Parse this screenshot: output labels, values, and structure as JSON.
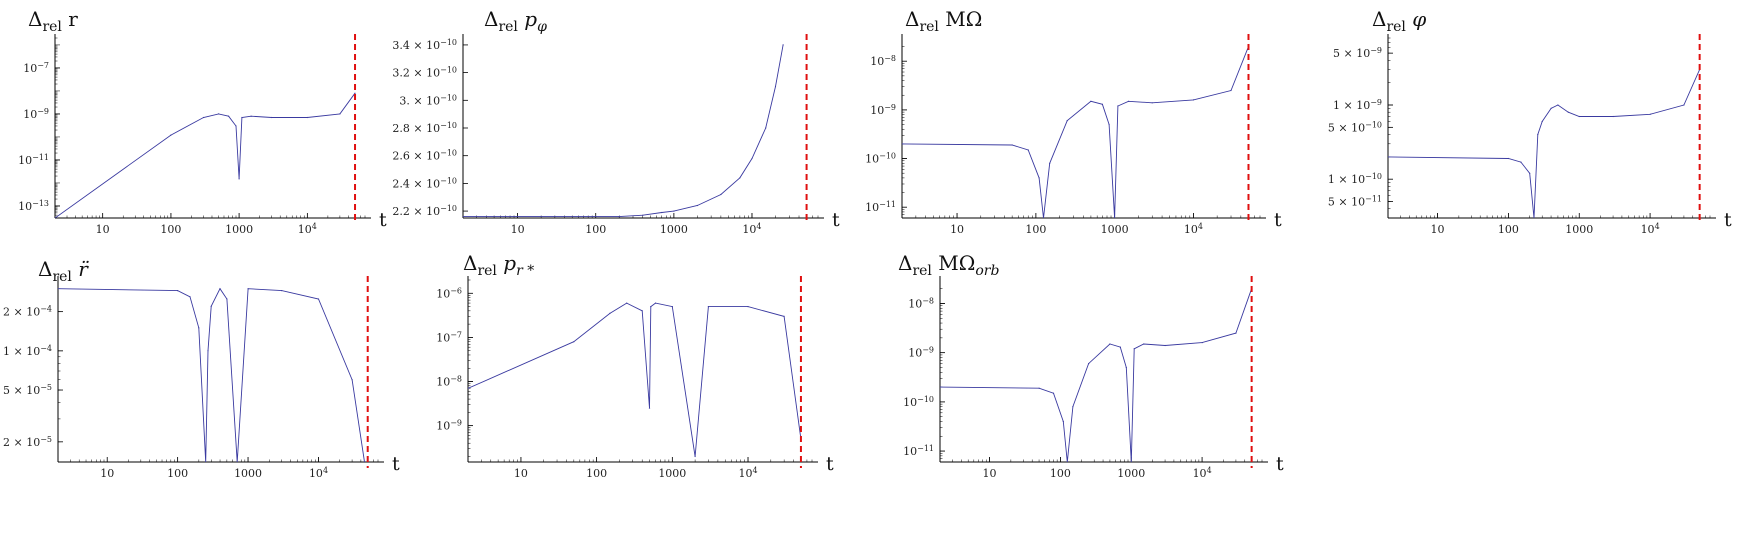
{
  "chart_data": [
    {
      "id": "p1",
      "type": "line",
      "title": {
        "symbol": "Δ",
        "sub": "rel",
        "var": "r"
      },
      "xlabel": "t",
      "xscale": "log",
      "yscale": "log",
      "xlim": [
        2,
        70000
      ],
      "ylim": [
        3e-14,
        2e-06
      ],
      "x_ticks": [
        {
          "v": 10,
          "label": "10"
        },
        {
          "v": 100,
          "label": "100"
        },
        {
          "v": 1000,
          "label": "1000"
        },
        {
          "v": 10000,
          "label": "10",
          "exp": "4"
        }
      ],
      "y_ticks": [
        {
          "v": 1e-13,
          "label": "10",
          "exp": "−13"
        },
        {
          "v": 1e-11,
          "label": "10",
          "exp": "−11"
        },
        {
          "v": 1e-09,
          "label": "10",
          "exp": "−9"
        },
        {
          "v": 1e-07,
          "label": "10",
          "exp": "−7"
        }
      ],
      "vline_x": 50000,
      "series": [
        {
          "x": [
            2,
            100,
            300,
            500,
            700,
            900,
            1000,
            1100,
            1500,
            3000,
            10000,
            30000,
            50000
          ],
          "y": [
            3e-14,
            1.2e-10,
            7e-10,
            1e-09,
            8e-10,
            3e-10,
            1.5e-12,
            7e-10,
            8e-10,
            7e-10,
            7e-10,
            1e-09,
            8e-09
          ]
        }
      ]
    },
    {
      "id": "p2",
      "type": "line",
      "title": {
        "symbol": "Δ",
        "sub": "rel",
        "var": "p",
        "var_sub": "φ"
      },
      "xlabel": "t",
      "xscale": "log",
      "yscale": "linear",
      "xlim": [
        2,
        70000
      ],
      "ylim": [
        2.15e-10,
        3.45e-10
      ],
      "x_ticks": [
        {
          "v": 10,
          "label": "10"
        },
        {
          "v": 100,
          "label": "100"
        },
        {
          "v": 1000,
          "label": "1000"
        },
        {
          "v": 10000,
          "label": "10",
          "exp": "4"
        }
      ],
      "y_ticks": [
        {
          "v": 2.2e-10,
          "label": "2.2 × 10",
          "exp": "−10"
        },
        {
          "v": 2.4e-10,
          "label": "2.4 × 10",
          "exp": "−10"
        },
        {
          "v": 2.6e-10,
          "label": "2.6 × 10",
          "exp": "−10"
        },
        {
          "v": 2.8e-10,
          "label": "2.8 × 10",
          "exp": "−10"
        },
        {
          "v": 3e-10,
          "label": "3. × 10",
          "exp": "−10"
        },
        {
          "v": 3.2e-10,
          "label": "3.2 × 10",
          "exp": "−10"
        },
        {
          "v": 3.4e-10,
          "label": "3.4 × 10",
          "exp": "−10"
        }
      ],
      "vline_x": 50000,
      "series": [
        {
          "x": [
            2,
            200,
            400,
            700,
            1000,
            2000,
            4000,
            7000,
            10000,
            15000,
            20000,
            25000
          ],
          "y": [
            2.16e-10,
            2.16e-10,
            2.17e-10,
            2.19e-10,
            2.2e-10,
            2.24e-10,
            2.32e-10,
            2.44e-10,
            2.58e-10,
            2.8e-10,
            3.1e-10,
            3.4e-10
          ]
        }
      ]
    },
    {
      "id": "p3",
      "type": "line",
      "title": {
        "symbol": "Δ",
        "sub": "rel",
        "var": "MΩ"
      },
      "xlabel": "t",
      "xscale": "log",
      "yscale": "log",
      "xlim": [
        2,
        70000
      ],
      "ylim": [
        6e-12,
        3e-08
      ],
      "x_ticks": [
        {
          "v": 10,
          "label": "10"
        },
        {
          "v": 100,
          "label": "100"
        },
        {
          "v": 1000,
          "label": "1000"
        },
        {
          "v": 10000,
          "label": "10",
          "exp": "4"
        }
      ],
      "y_ticks": [
        {
          "v": 1e-11,
          "label": "10",
          "exp": "−11"
        },
        {
          "v": 1e-10,
          "label": "10",
          "exp": "−10"
        },
        {
          "v": 1e-09,
          "label": "10",
          "exp": "−9"
        },
        {
          "v": 1e-08,
          "label": "10",
          "exp": "−8"
        }
      ],
      "vline_x": 50000,
      "series": [
        {
          "x": [
            2,
            50,
            80,
            110,
            125,
            150,
            250,
            500,
            700,
            850,
            1000,
            1100,
            1500,
            3000,
            10000,
            30000,
            50000
          ],
          "y": [
            2e-10,
            1.9e-10,
            1.5e-10,
            4e-11,
            6e-12,
            8e-11,
            6e-10,
            1.5e-09,
            1.3e-09,
            5e-10,
            6e-12,
            1.2e-09,
            1.5e-09,
            1.4e-09,
            1.6e-09,
            2.5e-09,
            2e-08
          ]
        }
      ]
    },
    {
      "id": "p4",
      "type": "line",
      "title": {
        "symbol": "Δ",
        "sub": "rel",
        "var": "φ"
      },
      "xlabel": "t",
      "xscale": "log",
      "yscale": "log",
      "xlim": [
        2,
        70000
      ],
      "ylim": [
        3e-11,
        8e-09
      ],
      "x_ticks": [
        {
          "v": 10,
          "label": "10"
        },
        {
          "v": 100,
          "label": "100"
        },
        {
          "v": 1000,
          "label": "1000"
        },
        {
          "v": 10000,
          "label": "10",
          "exp": "4"
        }
      ],
      "y_ticks": [
        {
          "v": 5e-11,
          "label": "5 × 10",
          "exp": "−11"
        },
        {
          "v": 1e-10,
          "label": "1 × 10",
          "exp": "−10"
        },
        {
          "v": 5e-10,
          "label": "5 × 10",
          "exp": "−10"
        },
        {
          "v": 1e-09,
          "label": "1 × 10",
          "exp": "−9"
        },
        {
          "v": 5e-09,
          "label": "5 × 10",
          "exp": "−9"
        }
      ],
      "vline_x": 50000,
      "series": [
        {
          "x": [
            2,
            100,
            150,
            200,
            230,
            260,
            300,
            400,
            500,
            700,
            1000,
            3000,
            10000,
            30000,
            50000
          ],
          "y": [
            2e-10,
            1.9e-10,
            1.7e-10,
            1.2e-10,
            3e-11,
            4e-10,
            6e-10,
            9e-10,
            1e-09,
            8e-10,
            7e-10,
            7e-10,
            7.5e-10,
            1e-09,
            3e-09
          ]
        }
      ]
    },
    {
      "id": "p5",
      "type": "line",
      "title": {
        "symbol": "Δ",
        "sub": "rel",
        "var": "r̈"
      },
      "xlabel": "t",
      "xscale": "log",
      "yscale": "log",
      "xlim": [
        2,
        70000
      ],
      "ylim": [
        1.4e-05,
        0.00035
      ],
      "x_ticks": [
        {
          "v": 10,
          "label": "10"
        },
        {
          "v": 100,
          "label": "100"
        },
        {
          "v": 1000,
          "label": "1000"
        },
        {
          "v": 10000,
          "label": "10",
          "exp": "4"
        }
      ],
      "y_ticks": [
        {
          "v": 2e-05,
          "label": "2 × 10",
          "exp": "−5"
        },
        {
          "v": 5e-05,
          "label": "5 × 10",
          "exp": "−5"
        },
        {
          "v": 0.0001,
          "label": "1 × 10",
          "exp": "−4"
        },
        {
          "v": 0.0002,
          "label": "2 × 10",
          "exp": "−4"
        }
      ],
      "vline_x": 50000,
      "series": [
        {
          "x": [
            2,
            100,
            150,
            200,
            250,
            270,
            300,
            400,
            500,
            700,
            1000,
            3000,
            10000,
            30000,
            45000
          ],
          "y": [
            0.0003,
            0.00029,
            0.00026,
            0.00015,
            1.4e-05,
            0.0001,
            0.00022,
            0.0003,
            0.00025,
            1.4e-05,
            0.0003,
            0.00029,
            0.00025,
            6e-05,
            1.4e-05
          ]
        }
      ]
    },
    {
      "id": "p6",
      "type": "line",
      "title": {
        "symbol": "Δ",
        "sub": "rel",
        "var": "p",
        "var_sub": "r *"
      },
      "xlabel": "t",
      "xscale": "log",
      "yscale": "log",
      "xlim": [
        2,
        70000
      ],
      "ylim": [
        1.5e-10,
        2e-06
      ],
      "x_ticks": [
        {
          "v": 10,
          "label": "10"
        },
        {
          "v": 100,
          "label": "100"
        },
        {
          "v": 1000,
          "label": "1000"
        },
        {
          "v": 10000,
          "label": "10",
          "exp": "4"
        }
      ],
      "y_ticks": [
        {
          "v": 1e-09,
          "label": "10",
          "exp": "−9"
        },
        {
          "v": 1e-08,
          "label": "10",
          "exp": "−8"
        },
        {
          "v": 1e-07,
          "label": "10",
          "exp": "−7"
        },
        {
          "v": 1e-06,
          "label": "10",
          "exp": "−6"
        }
      ],
      "vline_x": 50000,
      "series": [
        {
          "x": [
            2,
            50,
            150,
            250,
            400,
            500,
            520,
            600,
            1000,
            2000,
            3000,
            10000,
            30000,
            50000
          ],
          "y": [
            7e-09,
            8e-08,
            3.5e-07,
            6e-07,
            4e-07,
            2.5e-09,
            5e-07,
            6e-07,
            5e-07,
            2e-10,
            5e-07,
            5e-07,
            3e-07,
            5e-10
          ]
        }
      ]
    },
    {
      "id": "p7",
      "type": "line",
      "title": {
        "symbol": "Δ",
        "sub": "rel",
        "var": "MΩ",
        "var_sub": "orb"
      },
      "xlabel": "t",
      "xscale": "log",
      "yscale": "log",
      "xlim": [
        2,
        70000
      ],
      "ylim": [
        6e-12,
        3e-08
      ],
      "x_ticks": [
        {
          "v": 10,
          "label": "10"
        },
        {
          "v": 100,
          "label": "100"
        },
        {
          "v": 1000,
          "label": "1000"
        },
        {
          "v": 10000,
          "label": "10",
          "exp": "4"
        }
      ],
      "y_ticks": [
        {
          "v": 1e-11,
          "label": "10",
          "exp": "−11"
        },
        {
          "v": 1e-10,
          "label": "10",
          "exp": "−10"
        },
        {
          "v": 1e-09,
          "label": "10",
          "exp": "−9"
        },
        {
          "v": 1e-08,
          "label": "10",
          "exp": "−8"
        }
      ],
      "vline_x": 50000,
      "series": [
        {
          "x": [
            2,
            50,
            80,
            110,
            125,
            150,
            250,
            500,
            700,
            850,
            1000,
            1100,
            1500,
            3000,
            10000,
            30000,
            50000
          ],
          "y": [
            2e-10,
            1.9e-10,
            1.5e-10,
            4e-11,
            6e-12,
            8e-11,
            6e-10,
            1.5e-09,
            1.3e-09,
            5e-10,
            6e-12,
            1.2e-09,
            1.5e-09,
            1.4e-09,
            1.6e-09,
            2.5e-09,
            2e-08
          ]
        }
      ]
    }
  ]
}
